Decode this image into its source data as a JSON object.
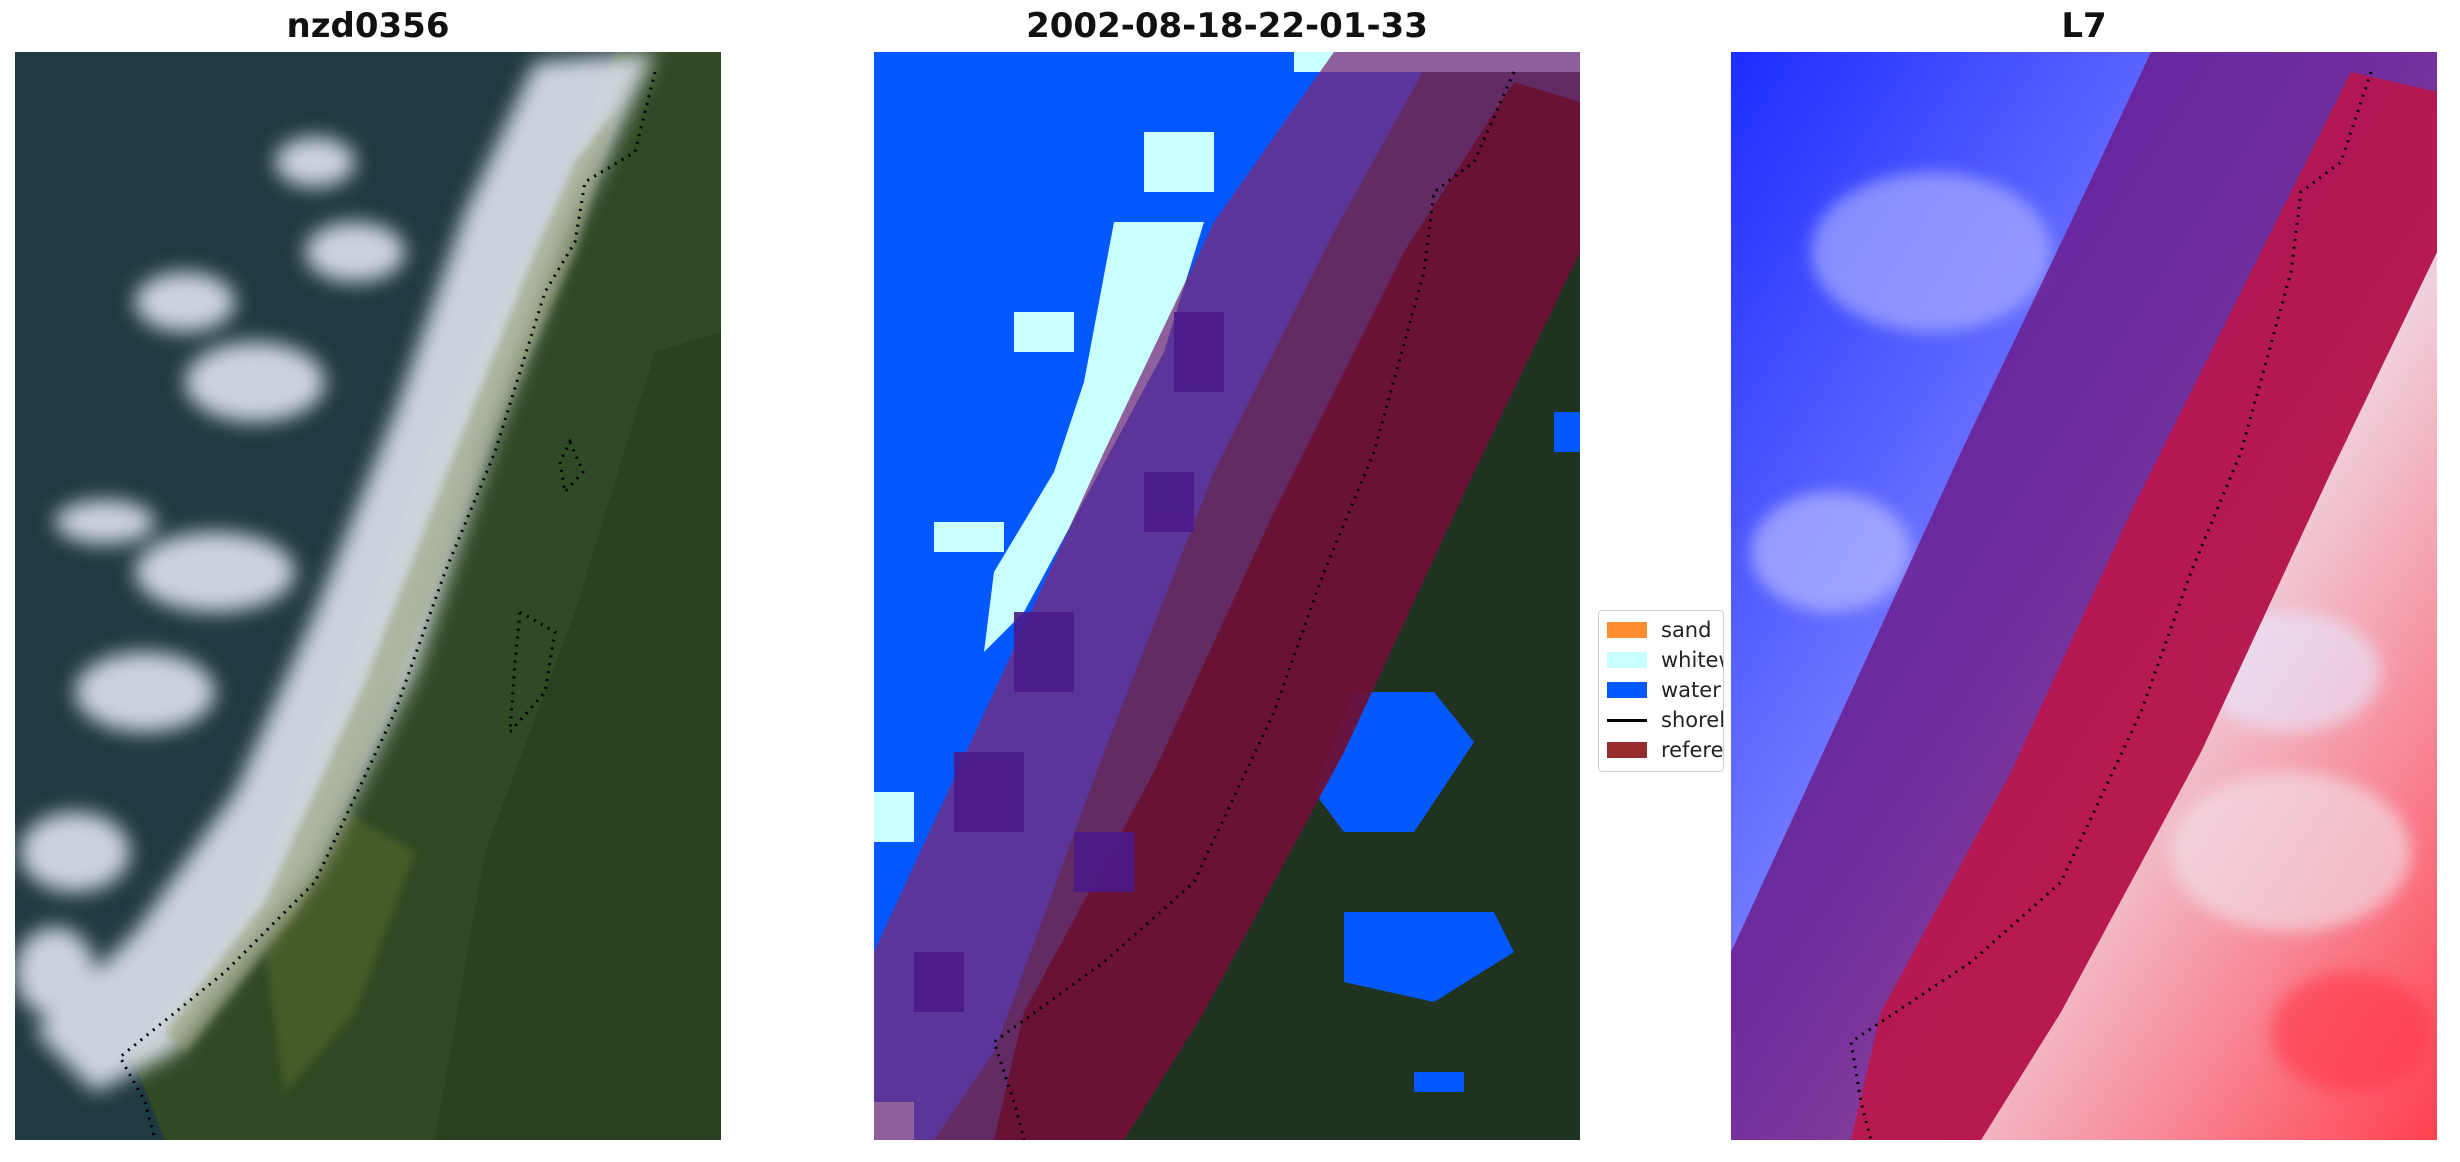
{
  "panels": [
    {
      "title": "nzd0356"
    },
    {
      "title": "2002-08-18-22-01-33"
    },
    {
      "title": "L7"
    }
  ],
  "legend": {
    "items": [
      {
        "label": "sand",
        "color": "#ff8c2e",
        "kind": "patch"
      },
      {
        "label": "whitewater",
        "color": "#c9ffff",
        "kind": "patch"
      },
      {
        "label": "water",
        "color": "#0458ff",
        "kind": "patch"
      },
      {
        "label": "shoreline",
        "color": "#000000",
        "kind": "line"
      },
      {
        "label": "reference",
        "color": "#962c2c",
        "kind": "patch"
      }
    ]
  },
  "colors": {
    "ocean": "#1f3a40",
    "land": "#2f4a24",
    "reference_buffer": "#8b0d3a",
    "classified_water": "#0458ff",
    "whitewater": "#c9ffff",
    "index_low": "#1d2cff",
    "index_high": "#ff1d2c"
  }
}
